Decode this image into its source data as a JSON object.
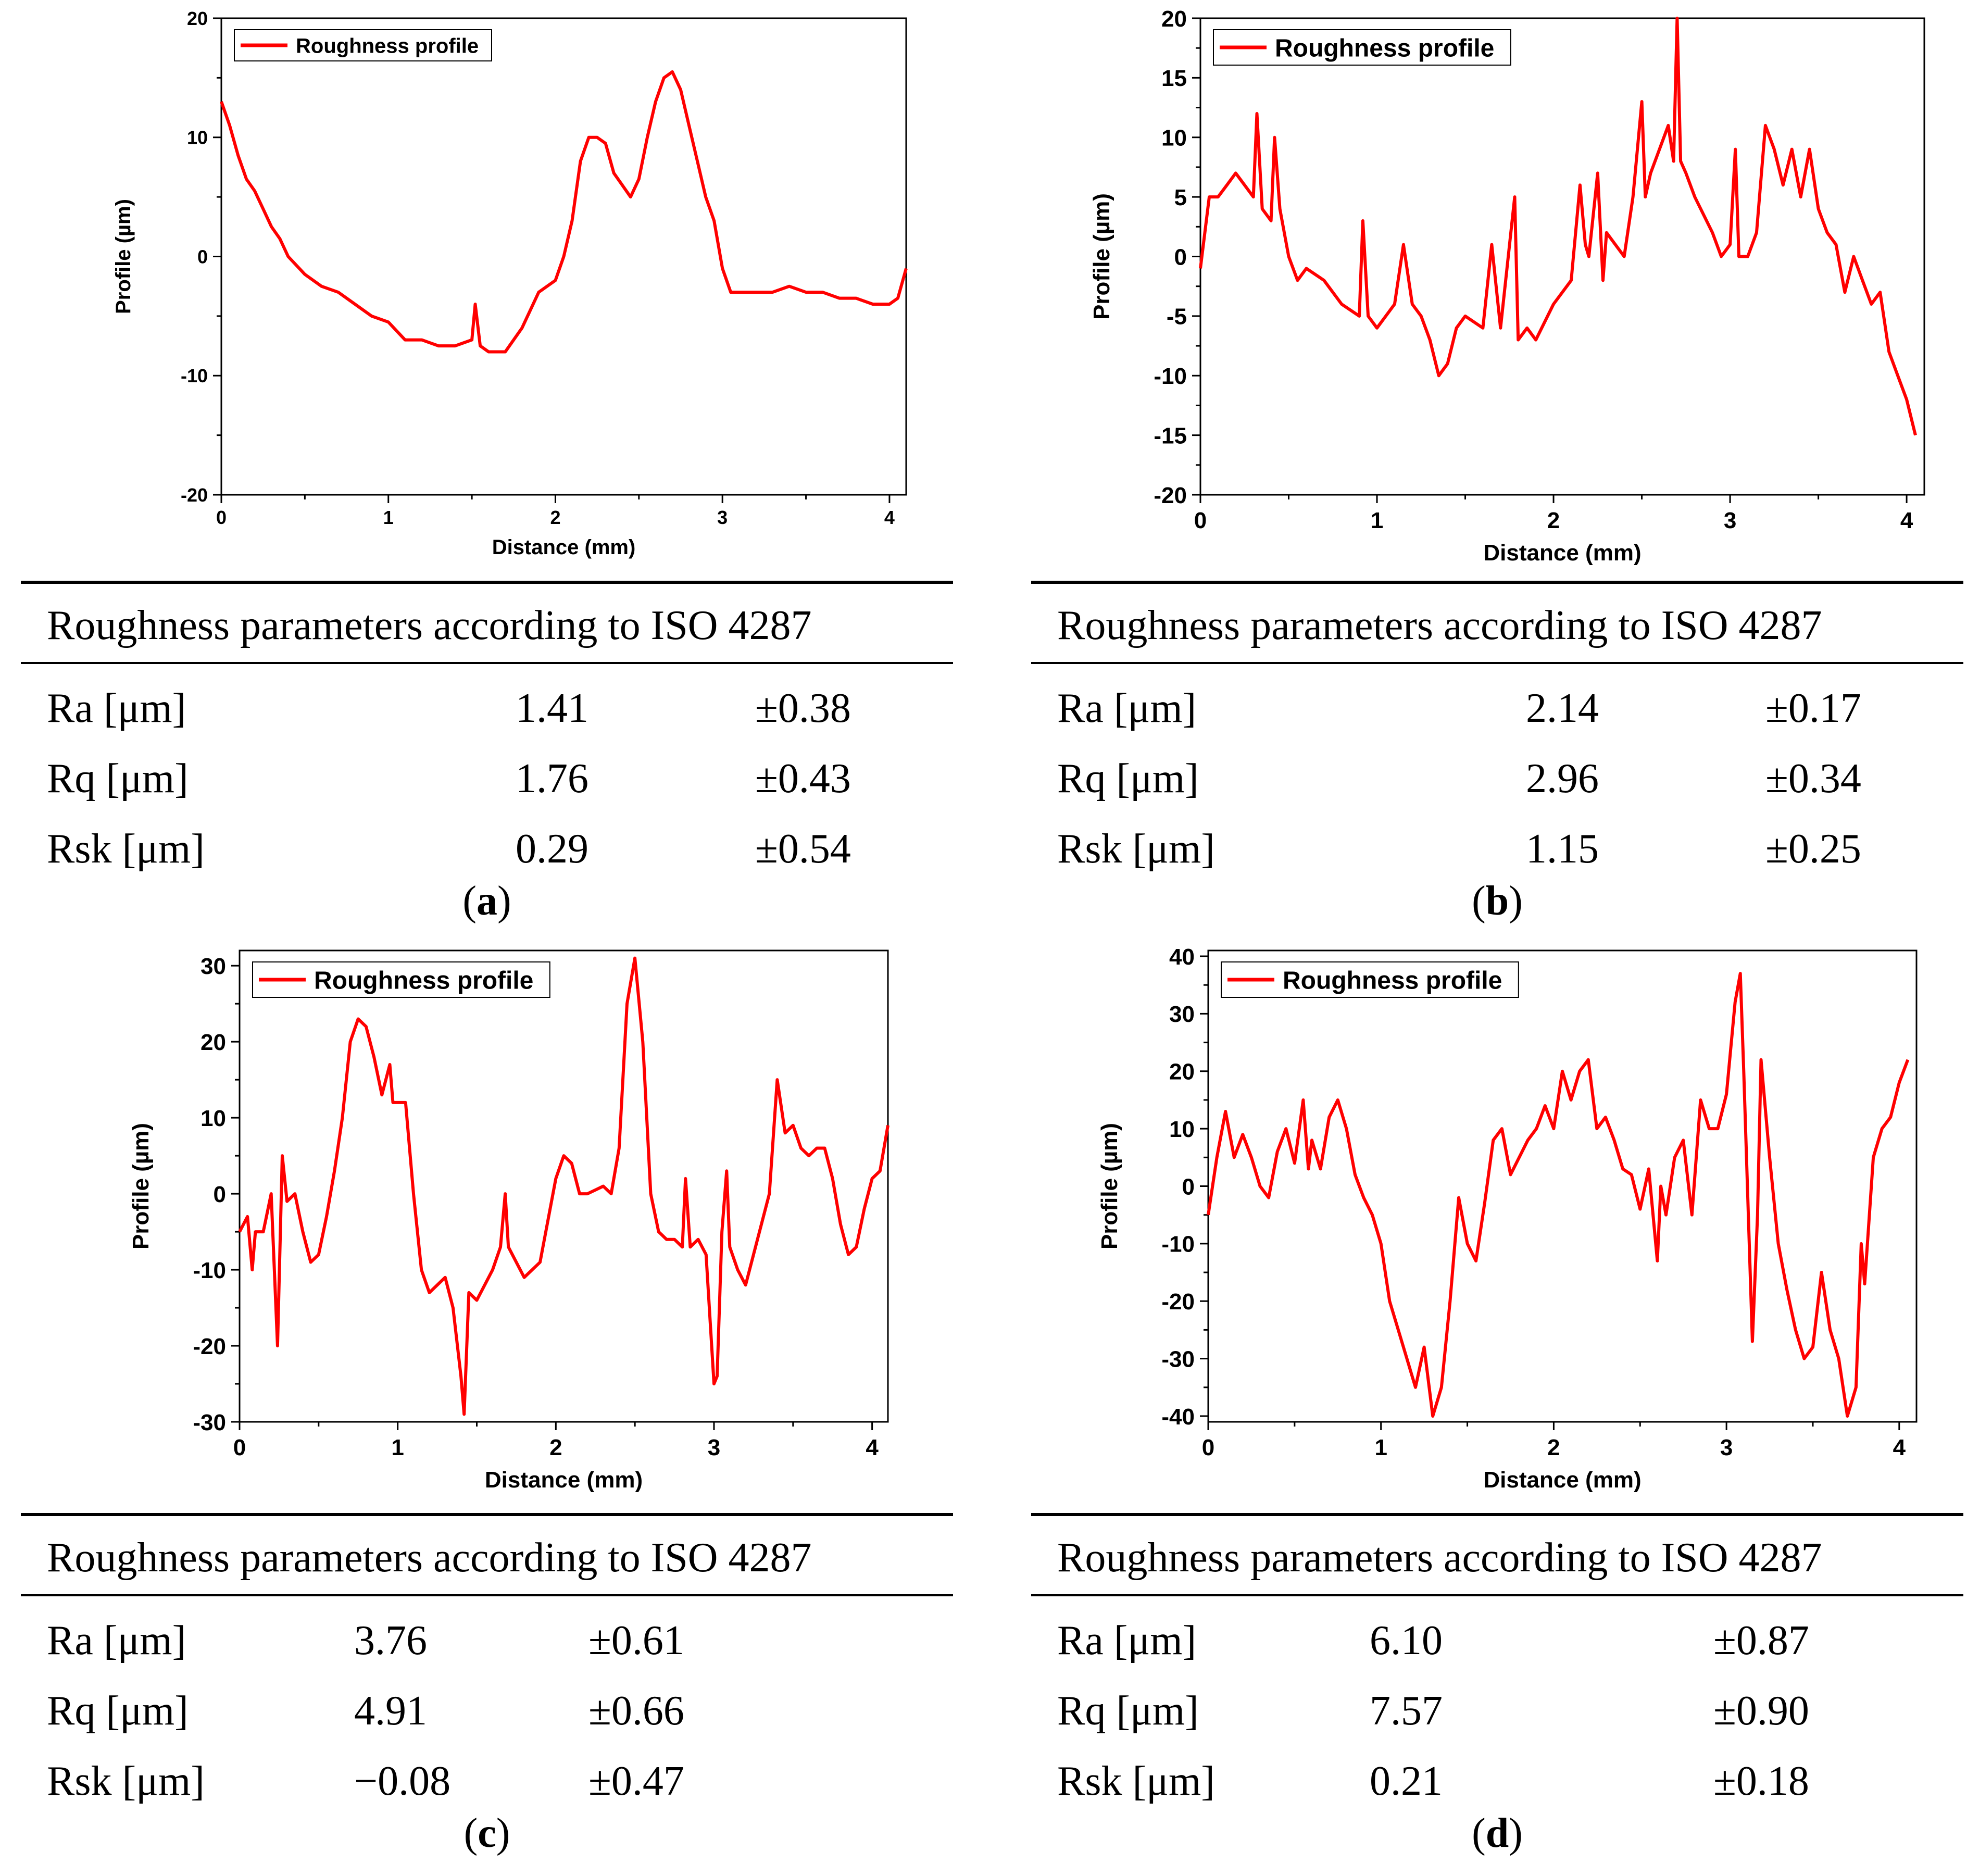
{
  "figure": {
    "line_color": "#ff0000",
    "legend_label": "Roughness profile",
    "xlabel": "Distance (mm)",
    "ylabel": "Profile (µm)",
    "table_title": "Roughness parameters according to ISO 4287"
  },
  "panels": [
    {
      "caption_letter": "a",
      "chart_data": {
        "type": "line",
        "title": "",
        "legend": [
          "Roughness profile"
        ],
        "legend_position": "top-left",
        "xlabel": "Distance (mm)",
        "ylabel": "Profile (µm)",
        "xlim": [
          0,
          4.1
        ],
        "ylim": [
          -20,
          20
        ],
        "xticks": [
          0,
          1,
          2,
          3,
          4
        ],
        "yticks": [
          -20,
          -10,
          0,
          10,
          20
        ],
        "series": [
          {
            "name": "Roughness profile",
            "x": [
              0,
              0.05,
              0.1,
              0.15,
              0.2,
              0.25,
              0.3,
              0.35,
              0.4,
              0.5,
              0.6,
              0.7,
              0.8,
              0.9,
              1.0,
              1.1,
              1.2,
              1.3,
              1.4,
              1.5,
              1.52,
              1.55,
              1.6,
              1.65,
              1.7,
              1.8,
              1.9,
              2.0,
              2.05,
              2.1,
              2.15,
              2.2,
              2.25,
              2.3,
              2.35,
              2.4,
              2.45,
              2.5,
              2.55,
              2.6,
              2.65,
              2.7,
              2.75,
              2.8,
              2.85,
              2.9,
              2.95,
              3.0,
              3.05,
              3.1,
              3.2,
              3.3,
              3.4,
              3.5,
              3.6,
              3.7,
              3.8,
              3.9,
              4.0,
              4.05,
              4.1
            ],
            "y": [
              13,
              11,
              8.5,
              6.5,
              5.5,
              4,
              2.5,
              1.5,
              0,
              -1.5,
              -2.5,
              -3,
              -4,
              -5,
              -5.5,
              -7,
              -7,
              -7.5,
              -7.5,
              -7,
              -4,
              -7.5,
              -8,
              -8,
              -8,
              -6,
              -3,
              -2,
              0,
              3,
              8,
              10,
              10,
              9.5,
              7,
              6,
              5,
              6.5,
              10,
              13,
              15,
              15.5,
              14,
              11,
              8,
              5,
              3,
              -1,
              -3,
              -3,
              -3,
              -3,
              -2.5,
              -3,
              -3,
              -3.5,
              -3.5,
              -4,
              -4,
              -3.5,
              -1
            ]
          }
        ]
      },
      "params": [
        {
          "name": "Ra [μm]",
          "value": "1.41",
          "error": "±0.38"
        },
        {
          "name": "Rq [μm]",
          "value": "1.76",
          "error": "±0.43"
        },
        {
          "name": "Rsk [μm]",
          "value": "0.29",
          "error": "±0.54"
        }
      ]
    },
    {
      "caption_letter": "b",
      "chart_data": {
        "type": "line",
        "title": "",
        "legend": [
          "Roughness profile"
        ],
        "legend_position": "top-left",
        "xlabel": "Distance (mm)",
        "ylabel": "Profile (µm)",
        "xlim": [
          0,
          4.1
        ],
        "ylim": [
          -20,
          20
        ],
        "xticks": [
          0,
          1,
          2,
          3,
          4
        ],
        "yticks": [
          -20,
          -15,
          -10,
          -5,
          0,
          5,
          10,
          15,
          20
        ],
        "series": [
          {
            "name": "Roughness profile",
            "x": [
              0,
              0.05,
              0.1,
              0.15,
              0.2,
              0.25,
              0.3,
              0.32,
              0.35,
              0.4,
              0.42,
              0.45,
              0.5,
              0.55,
              0.6,
              0.7,
              0.8,
              0.9,
              0.92,
              0.95,
              1.0,
              1.1,
              1.15,
              1.2,
              1.25,
              1.3,
              1.35,
              1.4,
              1.45,
              1.5,
              1.6,
              1.65,
              1.7,
              1.78,
              1.8,
              1.85,
              1.9,
              2.0,
              2.1,
              2.15,
              2.18,
              2.2,
              2.25,
              2.28,
              2.3,
              2.4,
              2.45,
              2.5,
              2.52,
              2.55,
              2.6,
              2.65,
              2.68,
              2.7,
              2.72,
              2.75,
              2.8,
              2.9,
              2.95,
              3.0,
              3.03,
              3.05,
              3.1,
              3.15,
              3.2,
              3.25,
              3.3,
              3.35,
              3.4,
              3.45,
              3.5,
              3.55,
              3.6,
              3.65,
              3.7,
              3.75,
              3.8,
              3.85,
              3.9,
              3.95,
              4.0,
              4.05
            ],
            "y": [
              -1,
              5,
              5,
              6,
              7,
              6,
              5,
              12,
              4,
              3,
              10,
              4,
              0,
              -2,
              -1,
              -2,
              -4,
              -5,
              3,
              -5,
              -6,
              -4,
              1,
              -4,
              -5,
              -7,
              -10,
              -9,
              -6,
              -5,
              -6,
              1,
              -6,
              5,
              -7,
              -6,
              -7,
              -4,
              -2,
              6,
              1,
              0,
              7,
              -2,
              2,
              0,
              5,
              13,
              5,
              7,
              9,
              11,
              8,
              20,
              8,
              7,
              5,
              2,
              0,
              1,
              9,
              0,
              0,
              2,
              11,
              9,
              6,
              9,
              5,
              9,
              4,
              2,
              1,
              -3,
              0,
              -2,
              -4,
              -3,
              -8,
              -10,
              -12,
              -15
            ]
          }
        ]
      },
      "params": [
        {
          "name": "Ra [μm]",
          "value": "2.14",
          "error": "±0.17"
        },
        {
          "name": "Rq [μm]",
          "value": "2.96",
          "error": "±0.34"
        },
        {
          "name": "Rsk [μm]",
          "value": "1.15",
          "error": "±0.25"
        }
      ]
    },
    {
      "caption_letter": "c",
      "chart_data": {
        "type": "line",
        "title": "",
        "legend": [
          "Roughness profile"
        ],
        "legend_position": "top-left",
        "xlabel": "Distance (mm)",
        "ylabel": "Profile (µm)",
        "xlim": [
          0,
          4.1
        ],
        "ylim": [
          -30,
          32
        ],
        "xticks": [
          0,
          1,
          2,
          3,
          4
        ],
        "yticks": [
          -30,
          -20,
          -10,
          0,
          10,
          20,
          30
        ],
        "series": [
          {
            "name": "Roughness profile",
            "x": [
              0,
              0.05,
              0.08,
              0.1,
              0.15,
              0.2,
              0.24,
              0.27,
              0.3,
              0.35,
              0.4,
              0.45,
              0.5,
              0.55,
              0.6,
              0.65,
              0.7,
              0.75,
              0.8,
              0.85,
              0.9,
              0.95,
              0.97,
              1.0,
              1.05,
              1.1,
              1.15,
              1.2,
              1.25,
              1.3,
              1.35,
              1.4,
              1.42,
              1.45,
              1.5,
              1.6,
              1.65,
              1.68,
              1.7,
              1.8,
              1.9,
              2.0,
              2.05,
              2.1,
              2.15,
              2.2,
              2.3,
              2.35,
              2.4,
              2.45,
              2.5,
              2.55,
              2.6,
              2.65,
              2.7,
              2.75,
              2.8,
              2.82,
              2.85,
              2.9,
              2.95,
              3.0,
              3.02,
              3.05,
              3.08,
              3.1,
              3.15,
              3.2,
              3.25,
              3.3,
              3.35,
              3.4,
              3.45,
              3.5,
              3.55,
              3.6,
              3.65,
              3.7,
              3.75,
              3.8,
              3.85,
              3.9,
              3.95,
              4.0,
              4.05,
              4.1
            ],
            "y": [
              -5,
              -3,
              -10,
              -5,
              -5,
              0,
              -20,
              5,
              -1,
              0,
              -5,
              -9,
              -8,
              -3,
              3,
              10,
              20,
              23,
              22,
              18,
              13,
              17,
              12,
              12,
              12,
              0,
              -10,
              -13,
              -12,
              -11,
              -15,
              -24,
              -29,
              -13,
              -14,
              -10,
              -7,
              0,
              -7,
              -11,
              -9,
              2,
              5,
              4,
              0,
              0,
              1,
              0,
              6,
              25,
              31,
              20,
              0,
              -5,
              -6,
              -6,
              -7,
              2,
              -7,
              -6,
              -8,
              -25,
              -24,
              -5,
              3,
              -7,
              -10,
              -12,
              -8,
              -4,
              0,
              15,
              8,
              9,
              6,
              5,
              6,
              6,
              2,
              -4,
              -8,
              -7,
              -2,
              2,
              3,
              9
            ]
          }
        ]
      },
      "params": [
        {
          "name": "Ra [μm]",
          "value": "3.76",
          "error": "±0.61"
        },
        {
          "name": "Rq [μm]",
          "value": "4.91",
          "error": "±0.66"
        },
        {
          "name": "Rsk [μm]",
          "value": "−0.08",
          "error": "±0.47"
        }
      ]
    },
    {
      "caption_letter": "d",
      "chart_data": {
        "type": "line",
        "title": "",
        "legend": [
          "Roughness profile"
        ],
        "legend_position": "top-left",
        "xlabel": "Distance (mm)",
        "ylabel": "Profile (µm)",
        "xlim": [
          0,
          4.1
        ],
        "ylim": [
          -41,
          41
        ],
        "xticks": [
          0,
          1,
          2,
          3,
          4
        ],
        "yticks": [
          -40,
          -30,
          -20,
          -10,
          0,
          10,
          20,
          30,
          40
        ],
        "series": [
          {
            "name": "Roughness profile",
            "x": [
              0,
              0.05,
              0.1,
              0.15,
              0.2,
              0.25,
              0.3,
              0.35,
              0.4,
              0.45,
              0.5,
              0.55,
              0.58,
              0.6,
              0.65,
              0.7,
              0.75,
              0.8,
              0.85,
              0.9,
              0.95,
              1.0,
              1.05,
              1.1,
              1.15,
              1.2,
              1.25,
              1.3,
              1.35,
              1.4,
              1.45,
              1.5,
              1.55,
              1.6,
              1.65,
              1.7,
              1.75,
              1.8,
              1.85,
              1.9,
              1.95,
              2.0,
              2.05,
              2.1,
              2.15,
              2.2,
              2.25,
              2.3,
              2.35,
              2.4,
              2.45,
              2.5,
              2.55,
              2.6,
              2.62,
              2.65,
              2.7,
              2.75,
              2.8,
              2.85,
              2.9,
              2.95,
              3.0,
              3.05,
              3.08,
              3.1,
              3.15,
              3.18,
              3.2,
              3.25,
              3.3,
              3.35,
              3.4,
              3.45,
              3.5,
              3.55,
              3.6,
              3.65,
              3.7,
              3.75,
              3.78,
              3.8,
              3.85,
              3.9,
              3.95,
              4.0,
              4.05
            ],
            "y": [
              -5,
              5,
              13,
              5,
              9,
              5,
              0,
              -2,
              6,
              10,
              4,
              15,
              3,
              8,
              3,
              12,
              15,
              10,
              2,
              -2,
              -5,
              -10,
              -20,
              -25,
              -30,
              -35,
              -28,
              -40,
              -35,
              -20,
              -2,
              -10,
              -13,
              -3,
              8,
              10,
              2,
              5,
              8,
              10,
              14,
              10,
              20,
              15,
              20,
              22,
              10,
              12,
              8,
              3,
              2,
              -4,
              3,
              -13,
              0,
              -5,
              5,
              8,
              -5,
              15,
              10,
              10,
              16,
              32,
              37,
              20,
              -27,
              -5,
              22,
              5,
              -10,
              -18,
              -25,
              -30,
              -28,
              -15,
              -25,
              -30,
              -40,
              -35,
              -10,
              -17,
              5,
              10,
              12,
              18,
              22
            ]
          }
        ]
      },
      "params": [
        {
          "name": "Ra [μm]",
          "value": "6.10",
          "error": "±0.87"
        },
        {
          "name": "Rq [μm]",
          "value": "7.57",
          "error": "±0.90"
        },
        {
          "name": "Rsk [μm]",
          "value": "0.21",
          "error": "±0.18"
        }
      ]
    }
  ]
}
